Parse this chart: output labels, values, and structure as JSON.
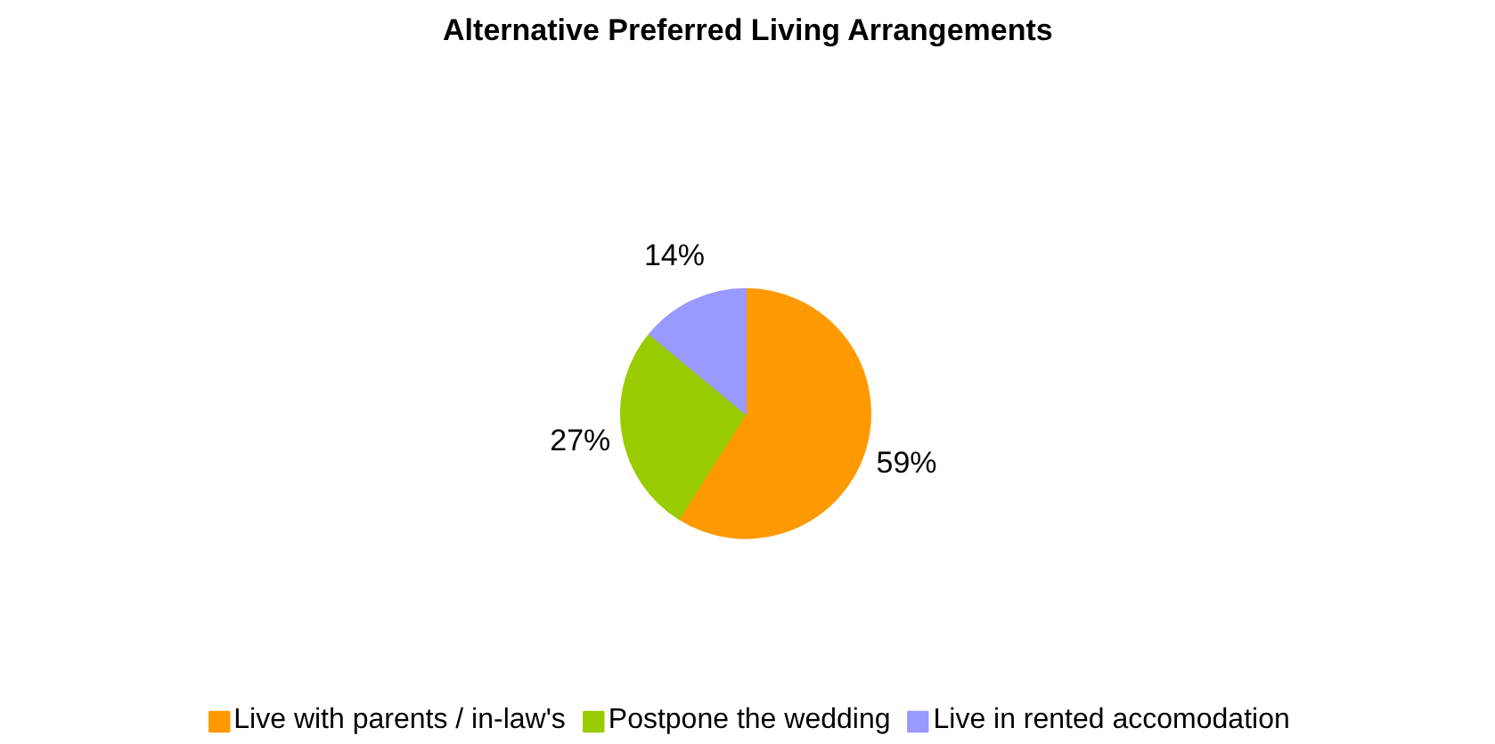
{
  "chart_data": {
    "type": "pie",
    "title": "Alternative Preferred Living Arrangements",
    "categories": [
      "Live with parents / in-law's",
      "Postpone the wedding",
      "Live in rented accomodation"
    ],
    "values": [
      59,
      27,
      14
    ],
    "colors": [
      "#ff9900",
      "#99cc00",
      "#9999ff"
    ],
    "value_labels": [
      "59%",
      "27%",
      "14%"
    ],
    "legend": "bottom"
  }
}
